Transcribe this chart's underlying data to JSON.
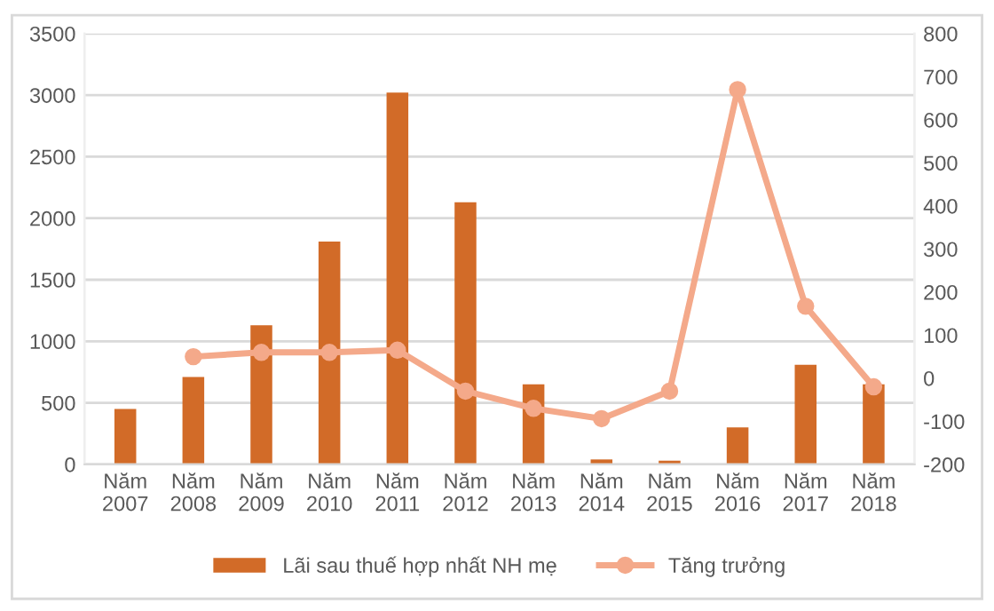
{
  "chart_data": {
    "type": "bar",
    "categories": [
      "Năm\n2007",
      "Năm\n2008",
      "Năm\n2009",
      "Năm\n2010",
      "Năm\n2011",
      "Năm\n2012",
      "Năm\n2013",
      "Năm\n2014",
      "Năm\n2015",
      "Năm\n2016",
      "Năm\n2017",
      "Năm\n2018"
    ],
    "series": [
      {
        "name": "Lãi sau thuế hợp nhất NH mẹ",
        "color": "#d26b28",
        "values": [
          450,
          710,
          1130,
          1810,
          3020,
          2130,
          650,
          40,
          30,
          300,
          810,
          650
        ]
      },
      {
        "name": "Tăng trưởng",
        "type": "line",
        "axis": "y2",
        "color": "#f4a98a",
        "marker": "circle",
        "values": [
          null,
          50,
          60,
          60,
          65,
          -30,
          -70,
          -94,
          -30,
          670,
          167,
          -20
        ]
      }
    ],
    "ylim": [
      0,
      3500
    ],
    "yticks": [
      0,
      500,
      1000,
      1500,
      2000,
      2500,
      3000,
      3500
    ],
    "y2lim": [
      -200,
      800
    ],
    "y2ticks": [
      -200,
      -100,
      0,
      100,
      200,
      300,
      400,
      500,
      600,
      700,
      800
    ],
    "grid": "y",
    "legend": "bottom"
  }
}
